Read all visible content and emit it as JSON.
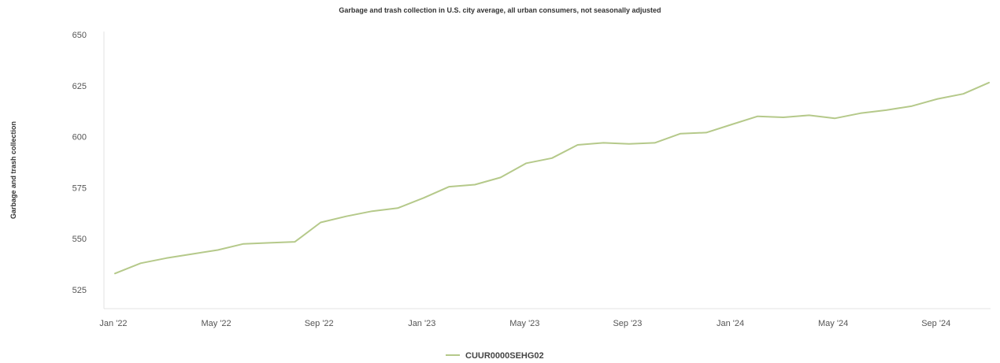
{
  "chart_data": {
    "type": "line",
    "title": "Garbage and trash collection in U.S. city average, all urban consumers, not seasonally adjusted",
    "xlabel": "",
    "ylabel": "Garbage and trash collection",
    "ylim": [
      525,
      650
    ],
    "yticks": [
      "650",
      "625",
      "600",
      "575",
      "550",
      "525"
    ],
    "x_tick_labels": [
      "Jan '22",
      "May '22",
      "Sep '22",
      "Jan '23",
      "May '23",
      "Sep '23",
      "Jan '24",
      "May '24",
      "Sep '24"
    ],
    "x": [
      "Jan '22",
      "Feb '22",
      "Mar '22",
      "Apr '22",
      "May '22",
      "Jun '22",
      "Jul '22",
      "Aug '22",
      "Sep '22",
      "Oct '22",
      "Nov '22",
      "Dec '22",
      "Jan '23",
      "Feb '23",
      "Mar '23",
      "Apr '23",
      "May '23",
      "Jun '23",
      "Jul '23",
      "Aug '23",
      "Sep '23",
      "Oct '23",
      "Nov '23",
      "Dec '23",
      "Jan '24",
      "Feb '24",
      "Mar '24",
      "Apr '24",
      "May '24",
      "Jun '24",
      "Jul '24",
      "Aug '24",
      "Sep '24",
      "Oct '24",
      "Nov '24"
    ],
    "series": [
      {
        "name": "CUUR0000SEHG02",
        "color": "#b5c98a",
        "values": [
          533,
          538,
          540.5,
          542.5,
          544.5,
          547.5,
          548,
          548.5,
          558,
          561,
          563.5,
          565,
          570,
          575.5,
          576.5,
          580,
          587,
          589.5,
          596,
          597,
          596.5,
          597,
          601.5,
          602,
          606,
          610,
          609.5,
          610.5,
          609,
          611.5,
          613,
          615,
          618.5,
          621,
          626.5
        ]
      }
    ],
    "grid": false,
    "legend_position": "bottom-center"
  }
}
